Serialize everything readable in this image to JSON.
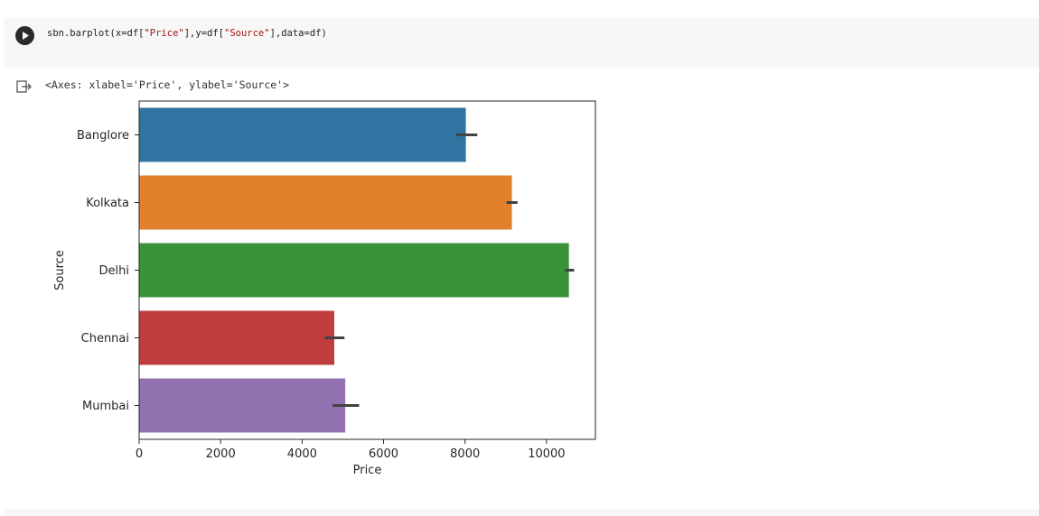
{
  "code_cell": {
    "code_prefix": "sbn.barplot(x=df[",
    "arg1": "\"Price\"",
    "code_mid": "],y=df[",
    "arg2": "\"Source\"",
    "code_suffix": "],data=df)"
  },
  "output": {
    "text": "<Axes: xlabel='Price', ylabel='Source'>"
  },
  "chart_data": {
    "type": "bar",
    "orientation": "horizontal",
    "categories": [
      "Banglore",
      "Kolkata",
      "Delhi",
      "Chennai",
      "Mumbai"
    ],
    "values": [
      8020,
      9150,
      10550,
      4790,
      5060
    ],
    "error_low": [
      7780,
      9020,
      10450,
      4560,
      4750
    ],
    "error_high": [
      8300,
      9290,
      10680,
      5040,
      5400
    ],
    "colors": [
      "#3274a1",
      "#e1812c",
      "#3a923a",
      "#c03d3e",
      "#9372b2"
    ],
    "xlabel": "Price",
    "ylabel": "Source",
    "xlim": [
      0,
      11200
    ],
    "xticks": [
      0,
      2000,
      4000,
      6000,
      8000,
      10000
    ]
  }
}
